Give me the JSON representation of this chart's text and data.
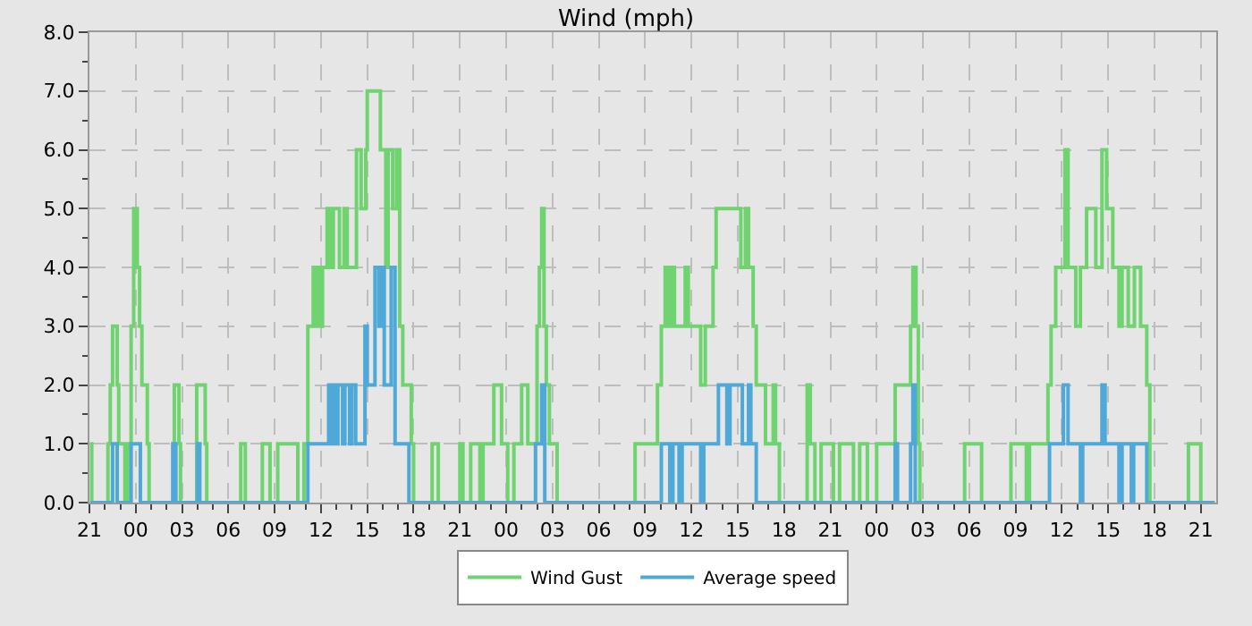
{
  "chart_data": {
    "type": "step",
    "title": "Wind (mph)",
    "xlim": [
      "--01-01T21:00",
      "--01-04T22:00"
    ],
    "ylim": [
      0,
      8
    ],
    "xticks": [
      {
        "value": "--01-01T21:00",
        "label": "21"
      },
      {
        "value": "--01-01T22:00",
        "label": null
      },
      {
        "value": "--01-01T23:00",
        "label": null
      },
      {
        "value": "--01-02T00:00",
        "label": "00"
      },
      {
        "value": "--01-02T01:00",
        "label": null
      },
      {
        "value": "--01-02T02:00",
        "label": null
      },
      {
        "value": "--01-02T03:00",
        "label": "03"
      },
      {
        "value": "--01-02T04:00",
        "label": null
      },
      {
        "value": "--01-02T05:00",
        "label": null
      },
      {
        "value": "--01-02T06:00",
        "label": "06"
      },
      {
        "value": "--01-02T07:00",
        "label": null
      },
      {
        "value": "--01-02T08:00",
        "label": null
      },
      {
        "value": "--01-02T09:00",
        "label": "09"
      },
      {
        "value": "--01-02T10:00",
        "label": null
      },
      {
        "value": "--01-02T11:00",
        "label": null
      },
      {
        "value": "--01-02T12:00",
        "label": "12"
      },
      {
        "value": "--01-02T13:00",
        "label": null
      },
      {
        "value": "--01-02T14:00",
        "label": null
      },
      {
        "value": "--01-02T15:00",
        "label": "15"
      },
      {
        "value": "--01-02T16:00",
        "label": null
      },
      {
        "value": "--01-02T17:00",
        "label": null
      },
      {
        "value": "--01-02T18:00",
        "label": "18"
      },
      {
        "value": "--01-02T19:00",
        "label": null
      },
      {
        "value": "--01-02T20:00",
        "label": null
      },
      {
        "value": "--01-02T21:00",
        "label": "21"
      },
      {
        "value": "--01-02T22:00",
        "label": null
      },
      {
        "value": "--01-02T23:00",
        "label": null
      },
      {
        "value": "--01-03T00:00",
        "label": "00"
      },
      {
        "value": "--01-03T01:00",
        "label": null
      },
      {
        "value": "--01-03T02:00",
        "label": null
      },
      {
        "value": "--01-03T03:00",
        "label": "03"
      },
      {
        "value": "--01-03T04:00",
        "label": null
      },
      {
        "value": "--01-03T05:00",
        "label": null
      },
      {
        "value": "--01-03T06:00",
        "label": "06"
      },
      {
        "value": "--01-03T07:00",
        "label": null
      },
      {
        "value": "--01-03T08:00",
        "label": null
      },
      {
        "value": "--01-03T09:00",
        "label": "09"
      },
      {
        "value": "--01-03T10:00",
        "label": null
      },
      {
        "value": "--01-03T11:00",
        "label": null
      },
      {
        "value": "--01-03T12:00",
        "label": "12"
      },
      {
        "value": "--01-03T13:00",
        "label": null
      },
      {
        "value": "--01-03T14:00",
        "label": null
      },
      {
        "value": "--01-03T15:00",
        "label": "15"
      },
      {
        "value": "--01-03T16:00",
        "label": null
      },
      {
        "value": "--01-03T17:00",
        "label": null
      },
      {
        "value": "--01-03T18:00",
        "label": "18"
      },
      {
        "value": "--01-03T19:00",
        "label": null
      },
      {
        "value": "--01-03T20:00",
        "label": null
      },
      {
        "value": "--01-03T21:00",
        "label": "21"
      },
      {
        "value": "--01-03T22:00",
        "label": null
      },
      {
        "value": "--01-03T23:00",
        "label": null
      },
      {
        "value": "--01-04T00:00",
        "label": "00"
      },
      {
        "value": "--01-04T01:00",
        "label": null
      },
      {
        "value": "--01-04T02:00",
        "label": null
      },
      {
        "value": "--01-04T03:00",
        "label": "03"
      },
      {
        "value": "--01-04T04:00",
        "label": null
      },
      {
        "value": "--01-04T05:00",
        "label": null
      },
      {
        "value": "--01-04T06:00",
        "label": "06"
      },
      {
        "value": "--01-04T07:00",
        "label": null
      },
      {
        "value": "--01-04T08:00",
        "label": null
      },
      {
        "value": "--01-04T09:00",
        "label": "09"
      },
      {
        "value": "--01-04T10:00",
        "label": null
      },
      {
        "value": "--01-04T11:00",
        "label": null
      },
      {
        "value": "--01-04T12:00",
        "label": "12"
      },
      {
        "value": "--01-04T13:00",
        "label": null
      },
      {
        "value": "--01-04T14:00",
        "label": null
      },
      {
        "value": "--01-04T15:00",
        "label": "15"
      },
      {
        "value": "--01-04T16:00",
        "label": null
      },
      {
        "value": "--01-04T17:00",
        "label": null
      },
      {
        "value": "--01-04T18:00",
        "label": "18"
      },
      {
        "value": "--01-04T19:00",
        "label": null
      },
      {
        "value": "--01-04T20:00",
        "label": null
      },
      {
        "value": "--01-04T21:00",
        "label": "21"
      }
    ],
    "yticks": [
      {
        "value": 0,
        "label": "0.0"
      },
      {
        "value": 0.5,
        "label": null
      },
      {
        "value": 1,
        "label": "1.0"
      },
      {
        "value": 1.5,
        "label": null
      },
      {
        "value": 2,
        "label": "2.0"
      },
      {
        "value": 2.5,
        "label": null
      },
      {
        "value": 3,
        "label": "3.0"
      },
      {
        "value": 3.5,
        "label": null
      },
      {
        "value": 4,
        "label": "4.0"
      },
      {
        "value": 4.5,
        "label": null
      },
      {
        "value": 5,
        "label": "5.0"
      },
      {
        "value": 5.5,
        "label": null
      },
      {
        "value": 6,
        "label": "6.0"
      },
      {
        "value": 6.5,
        "label": null
      },
      {
        "value": 7,
        "label": "7.0"
      },
      {
        "value": 7.5,
        "label": null
      },
      {
        "value": 8,
        "label": "8.0"
      }
    ],
    "grid": true,
    "legend": "bottom",
    "marker": "none",
    "line_style": "solid",
    "series": [
      {
        "name": "Wind Gust",
        "color": "#6fd46f",
        "x": [
          "--01-01T21:03",
          "--01-01T21:09",
          "--01-01T22:12",
          "--01-01T22:21",
          "--01-01T22:30",
          "--01-01T22:48",
          "--01-01T22:54",
          "--01-01T23:18",
          "--01-01T23:30",
          "--01-01T23:42",
          "--01-01T23:52",
          "--01-02T00:06",
          "--01-02T00:15",
          "--01-02T00:24",
          "--01-02T00:45",
          "--01-02T00:52",
          "--01-02T02:30",
          "--01-02T02:48",
          "--01-02T02:54",
          "--01-02T03:57",
          "--01-02T04:30",
          "--01-02T04:36",
          "--01-02T06:48",
          "--01-02T07:06",
          "--01-02T08:12",
          "--01-02T08:42",
          "--01-02T09:12",
          "--01-02T10:30",
          "--01-02T10:54",
          "--01-02T11:09",
          "--01-02T11:30",
          "--01-02T11:39",
          "--01-02T11:48",
          "--01-02T11:57",
          "--01-02T12:06",
          "--01-02T12:24",
          "--01-02T12:36",
          "--01-02T12:48",
          "--01-02T13:12",
          "--01-02T13:30",
          "--01-02T13:42",
          "--01-02T14:18",
          "--01-02T14:36",
          "--01-02T14:54",
          "--01-02T15:00",
          "--01-02T15:51",
          "--01-02T16:12",
          "--01-02T16:21",
          "--01-02T16:39",
          "--01-02T16:54",
          "--01-02T17:06",
          "--01-02T17:18",
          "--01-02T17:51",
          "--01-02T18:00",
          "--01-02T19:12",
          "--01-02T19:36",
          "--01-02T21:00",
          "--01-02T21:12",
          "--01-02T21:42",
          "--01-02T22:18",
          "--01-02T22:30",
          "--01-02T23:12",
          "--01-02T23:42",
          "--01-03T00:06",
          "--01-03T00:30",
          "--01-03T01:00",
          "--01-03T01:24",
          "--01-03T02:00",
          "--01-03T02:09",
          "--01-03T02:18",
          "--01-03T02:27",
          "--01-03T02:36",
          "--01-03T02:48",
          "--01-03T03:18",
          "--01-03T08:21",
          "--01-03T09:48",
          "--01-03T10:03",
          "--01-03T10:18",
          "--01-03T10:30",
          "--01-03T10:42",
          "--01-03T10:54",
          "--01-03T11:36",
          "--01-03T11:48",
          "--01-03T12:36",
          "--01-03T12:54",
          "--01-03T13:24",
          "--01-03T13:36",
          "--01-03T15:12",
          "--01-03T15:30",
          "--01-03T15:42",
          "--01-03T16:00",
          "--01-03T16:12",
          "--01-03T16:48",
          "--01-03T17:18",
          "--01-03T17:27",
          "--01-03T17:42",
          "--01-03T19:30",
          "--01-03T19:42",
          "--01-03T20:00",
          "--01-03T20:24",
          "--01-03T21:12",
          "--01-03T21:36",
          "--01-03T22:30",
          "--01-03T22:54",
          "--01-03T23:24",
          "--01-04T00:00",
          "--01-04T01:12",
          "--01-04T02:12",
          "--01-04T02:21",
          "--01-04T02:33",
          "--01-04T02:42",
          "--01-04T02:48",
          "--01-04T05:42",
          "--01-04T06:48",
          "--01-04T08:42",
          "--01-04T09:42",
          "--01-04T09:54",
          "--01-04T11:06",
          "--01-04T11:18",
          "--01-04T11:36",
          "--01-04T12:12",
          "--01-04T12:24",
          "--01-04T12:54",
          "--01-04T13:12",
          "--01-04T13:36",
          "--01-04T14:12",
          "--01-04T14:36",
          "--01-04T14:54",
          "--01-04T15:18",
          "--01-04T15:42",
          "--01-04T15:54",
          "--01-04T16:18",
          "--01-04T16:42",
          "--01-04T17:06",
          "--01-04T17:30",
          "--01-04T17:42",
          "--01-04T20:12",
          "--01-04T21:00",
          "--01-04T21:54"
        ],
        "values": [
          1,
          0,
          1,
          2,
          3,
          2,
          1,
          0,
          1,
          3,
          5,
          4,
          3,
          2,
          1,
          0,
          2,
          1,
          0,
          2,
          1,
          0,
          1,
          0,
          1,
          0,
          1,
          0,
          1,
          3,
          4,
          3,
          4,
          3,
          4,
          5,
          4,
          5,
          4,
          5,
          4,
          6,
          5,
          6,
          7,
          6,
          4,
          6,
          5,
          6,
          3,
          2,
          1,
          0,
          1,
          0,
          1,
          0,
          1,
          0,
          1,
          2,
          1,
          0,
          1,
          2,
          1,
          3,
          4,
          5,
          3,
          2,
          1,
          0,
          1,
          2,
          3,
          4,
          3,
          4,
          3,
          4,
          3,
          2,
          3,
          4,
          5,
          4,
          5,
          4,
          3,
          2,
          1,
          2,
          1,
          0,
          2,
          1,
          0,
          1,
          0,
          1,
          0,
          1,
          0,
          1,
          2,
          3,
          4,
          3,
          1,
          0,
          1,
          0,
          1,
          0,
          1,
          2,
          3,
          4,
          6,
          4,
          3,
          4,
          5,
          4,
          6,
          5,
          4,
          3,
          4,
          3,
          4,
          3,
          2,
          0,
          1,
          0,
          0
        ]
      },
      {
        "name": "Average speed",
        "color": "#4fa9d8",
        "x": [
          "--01-01T21:03",
          "--01-01T22:30",
          "--01-01T22:48",
          "--01-01T23:42",
          "--01-02T00:18",
          "--01-02T02:24",
          "--01-02T02:36",
          "--01-02T04:00",
          "--01-02T04:09",
          "--01-02T11:09",
          "--01-02T12:30",
          "--01-02T12:39",
          "--01-02T12:48",
          "--01-02T12:57",
          "--01-02T13:06",
          "--01-02T13:24",
          "--01-02T13:33",
          "--01-02T13:51",
          "--01-02T14:00",
          "--01-02T14:15",
          "--01-02T14:51",
          "--01-02T15:00",
          "--01-02T15:30",
          "--01-02T15:45",
          "--01-02T15:54",
          "--01-02T16:06",
          "--01-02T16:33",
          "--01-02T16:48",
          "--01-02T17:42",
          "--01-03T01:54",
          "--01-03T02:18",
          "--01-03T02:30",
          "--01-03T10:03",
          "--01-03T10:36",
          "--01-03T10:48",
          "--01-03T11:12",
          "--01-03T11:24",
          "--01-03T12:36",
          "--01-03T12:48",
          "--01-03T13:45",
          "--01-03T14:18",
          "--01-03T14:30",
          "--01-03T15:18",
          "--01-03T15:42",
          "--01-03T15:51",
          "--01-03T16:12",
          "--01-04T01:12",
          "--01-04T01:21",
          "--01-04T02:12",
          "--01-04T02:21",
          "--01-04T02:30",
          "--01-04T11:12",
          "--01-04T12:06",
          "--01-04T12:24",
          "--01-04T13:12",
          "--01-04T13:21",
          "--01-04T14:36",
          "--01-04T14:48",
          "--01-04T15:42",
          "--01-04T15:54",
          "--01-04T16:30",
          "--01-04T16:39",
          "--01-04T17:30",
          "--01-04T21:54"
        ],
        "values": [
          0,
          1,
          0,
          1,
          0,
          1,
          0,
          1,
          0,
          1,
          2,
          1,
          2,
          1,
          2,
          1,
          2,
          1,
          2,
          1,
          3,
          2,
          4,
          3,
          4,
          2,
          4,
          1,
          0,
          1,
          2,
          0,
          1,
          0,
          1,
          0,
          1,
          0,
          1,
          2,
          1,
          2,
          1,
          2,
          1,
          0,
          1,
          0,
          1,
          2,
          0,
          1,
          2,
          1,
          0,
          1,
          2,
          1,
          0,
          1,
          0,
          1,
          0,
          0
        ]
      }
    ]
  }
}
